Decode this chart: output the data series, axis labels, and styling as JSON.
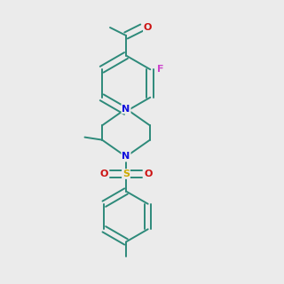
{
  "bg_color": "#ebebeb",
  "bond_color": "#2d8a7a",
  "N_color": "#1010dd",
  "O_color": "#cc1111",
  "F_color": "#cc44cc",
  "S_color": "#ccaa00",
  "lw": 1.4,
  "dbo": 0.018,
  "fs": 8.0
}
